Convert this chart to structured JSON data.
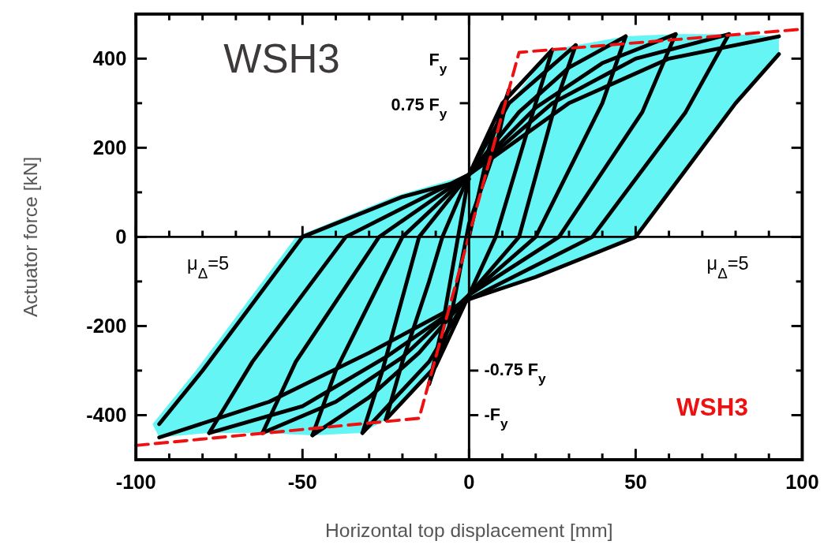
{
  "chart_data": {
    "type": "line",
    "xlabel": "Horizontal top displacement [mm]",
    "ylabel": "Actuator force [kN]",
    "xlim": [
      -100,
      100
    ],
    "ylim": [
      -500,
      500
    ],
    "xticks": [
      -100,
      {
        "value": -90,
        "label": null
      },
      {
        "value": -80,
        "label": null
      },
      {
        "value": -70,
        "label": null
      },
      {
        "value": -60,
        "label": null
      },
      -50,
      {
        "value": -40,
        "label": null
      },
      {
        "value": -30,
        "label": null
      },
      {
        "value": -20,
        "label": null
      },
      {
        "value": -10,
        "label": null
      },
      0,
      {
        "value": 10,
        "label": null
      },
      {
        "value": 20,
        "label": null
      },
      {
        "value": 30,
        "label": null
      },
      {
        "value": 40,
        "label": null
      },
      50,
      {
        "value": 60,
        "label": null
      },
      {
        "value": 70,
        "label": null
      },
      {
        "value": 80,
        "label": null
      },
      {
        "value": 90,
        "label": null
      },
      100
    ],
    "yticks": [
      -400,
      {
        "value": -300,
        "label": null
      },
      -200,
      {
        "value": -100,
        "label": null
      },
      0,
      {
        "value": 100,
        "label": null
      },
      200,
      {
        "value": 300,
        "label": null
      },
      400
    ],
    "marker": "none",
    "series": [
      {
        "type": "area",
        "color": "#66f5f5",
        "x": [
          -93,
          -95,
          -82,
          -52,
          -22,
          0,
          12,
          25,
          32,
          47,
          62,
          78,
          93,
          93,
          80,
          50,
          20,
          0,
          -12,
          -25,
          -32,
          -47,
          -62,
          -78,
          -93
        ],
        "values": [
          -450,
          -420,
          -300,
          0,
          92,
          140,
          300,
          420,
          430,
          450,
          455,
          455,
          450,
          410,
          300,
          0,
          -90,
          -140,
          -300,
          -410,
          -440,
          -445,
          -440,
          -440,
          -450
        ]
      },
      {
        "color": "#000000",
        "x": [
          0,
          6,
          12
        ],
        "values": [
          0,
          200,
          330
        ]
      },
      {
        "color": "#000000",
        "x": [
          12,
          8,
          0,
          -6,
          -12
        ],
        "values": [
          330,
          200,
          30,
          -200,
          -330
        ]
      },
      {
        "color": "#000000",
        "x": [
          -12,
          -8,
          0,
          10,
          25
        ],
        "values": [
          -330,
          -200,
          140,
          300,
          420
        ]
      },
      {
        "color": "#000000",
        "x": [
          25,
          20,
          12,
          8,
          0,
          -10,
          -25
        ],
        "values": [
          420,
          300,
          100,
          0,
          -130,
          -290,
          -410
        ]
      },
      {
        "color": "#000000",
        "x": [
          -25,
          -20,
          -12,
          -8,
          0,
          12,
          32
        ],
        "values": [
          -410,
          -280,
          -100,
          0,
          140,
          300,
          430
        ]
      },
      {
        "color": "#000000",
        "x": [
          32,
          26,
          15,
          0,
          -12,
          -32
        ],
        "values": [
          430,
          300,
          0,
          -130,
          -280,
          -440
        ]
      },
      {
        "color": "#000000",
        "x": [
          -32,
          -26,
          -15,
          0,
          15,
          30,
          47
        ],
        "values": [
          -440,
          -300,
          0,
          140,
          280,
          380,
          450
        ]
      },
      {
        "color": "#000000",
        "x": [
          47,
          40,
          20,
          0,
          -15,
          -30,
          -47
        ],
        "values": [
          450,
          300,
          0,
          -130,
          -260,
          -360,
          -445
        ]
      },
      {
        "color": "#000000",
        "x": [
          -47,
          -40,
          -20,
          0,
          20,
          40,
          62
        ],
        "values": [
          -445,
          -300,
          0,
          140,
          290,
          390,
          455
        ]
      },
      {
        "color": "#000000",
        "x": [
          62,
          52,
          27,
          0,
          -20,
          -40,
          -62
        ],
        "values": [
          455,
          280,
          0,
          -130,
          -270,
          -370,
          -440
        ]
      },
      {
        "color": "#000000",
        "x": [
          -62,
          -52,
          -27,
          0,
          25,
          50,
          78
        ],
        "values": [
          -440,
          -280,
          0,
          140,
          300,
          400,
          455
        ]
      },
      {
        "color": "#000000",
        "x": [
          78,
          65,
          37,
          0,
          -25,
          -50,
          -78
        ],
        "values": [
          455,
          280,
          0,
          -140,
          -270,
          -380,
          -440
        ]
      },
      {
        "color": "#000000",
        "x": [
          -78,
          -65,
          -37,
          0,
          30,
          60,
          93
        ],
        "values": [
          -440,
          -280,
          0,
          140,
          300,
          400,
          450
        ]
      },
      {
        "color": "#000000",
        "x": [
          93,
          80,
          50,
          20,
          0,
          -30,
          -60,
          -93
        ],
        "values": [
          410,
          300,
          0,
          -90,
          -140,
          -260,
          -370,
          -450
        ]
      },
      {
        "color": "#000000",
        "x": [
          -93,
          -80,
          -50,
          -20,
          0
        ],
        "values": [
          -420,
          -300,
          0,
          90,
          130
        ]
      },
      {
        "color": "#ee1111",
        "line_style": "dashed",
        "x": [
          -100,
          -15,
          15,
          100
        ],
        "values": [
          -468,
          -407,
          414,
          466
        ]
      }
    ],
    "annotations": [
      "WSH3",
      "F$_{y}$",
      "0.75 F$_{y}$",
      "-0.75 F$_{y}$",
      "-F$_{y}$",
      "μ$_{Δ}$=5",
      "μ$_{Δ}$=5",
      "WSH3"
    ]
  }
}
